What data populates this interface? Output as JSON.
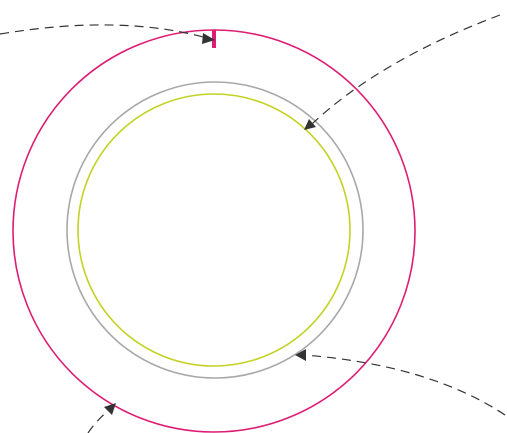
{
  "diagram": {
    "background": "#ffffff",
    "colors": {
      "outer_ring": "#dd1d74",
      "middle_ring": "#a8a8a8",
      "inner_ring": "#c3d224",
      "marker": "#dd1d74",
      "leader": "#333333",
      "arrowhead": "#333333"
    },
    "rings": [
      {
        "name": "outer-ring",
        "color_key": "outer_ring"
      },
      {
        "name": "middle-ring",
        "color_key": "middle_ring"
      },
      {
        "name": "inner-ring",
        "color_key": "inner_ring"
      }
    ],
    "callouts": [
      {
        "name": "callout-top-left",
        "points_to": "outer-ring"
      },
      {
        "name": "callout-top-right",
        "points_to": "inner-ring"
      },
      {
        "name": "callout-bottom-right",
        "points_to": "middle-ring"
      },
      {
        "name": "callout-bottom-left",
        "points_to": "outer-ring"
      }
    ],
    "marker": {
      "name": "top-position-marker",
      "on": "outer-ring"
    }
  }
}
